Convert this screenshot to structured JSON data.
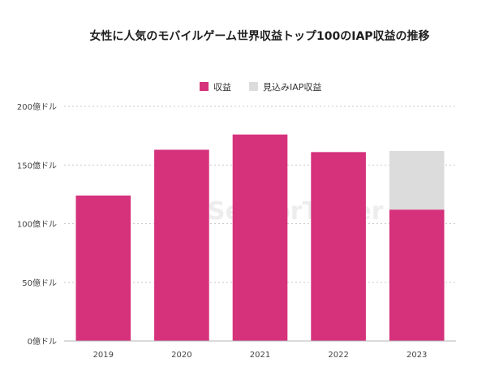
{
  "chart_data": {
    "type": "bar",
    "title": "女性に人気のモバイルゲーム世界収益トップ100のIAP収益の推移",
    "categories": [
      "2019",
      "2020",
      "2021",
      "2022",
      "2023"
    ],
    "series": [
      {
        "name": "収益",
        "color": "#d6317b",
        "values": [
          124,
          163,
          176,
          161,
          112
        ]
      },
      {
        "name": "見込みIAP収益",
        "color": "#dcdcdc",
        "values": [
          0,
          0,
          0,
          0,
          50
        ]
      }
    ],
    "stacked": true,
    "ylim": [
      0,
      200
    ],
    "yticks": [
      {
        "value": 0,
        "label": "0億ドル"
      },
      {
        "value": 50,
        "label": "50億ドル"
      },
      {
        "value": 100,
        "label": "100億ドル"
      },
      {
        "value": 150,
        "label": "150億ドル"
      },
      {
        "value": 200,
        "label": "200億ドル"
      }
    ],
    "grid": true,
    "legend_position": "top-center",
    "xlabel": "",
    "ylabel": ""
  },
  "watermark": {
    "text": "SensorTower",
    "icon": "sensor-tower-logo-icon"
  }
}
